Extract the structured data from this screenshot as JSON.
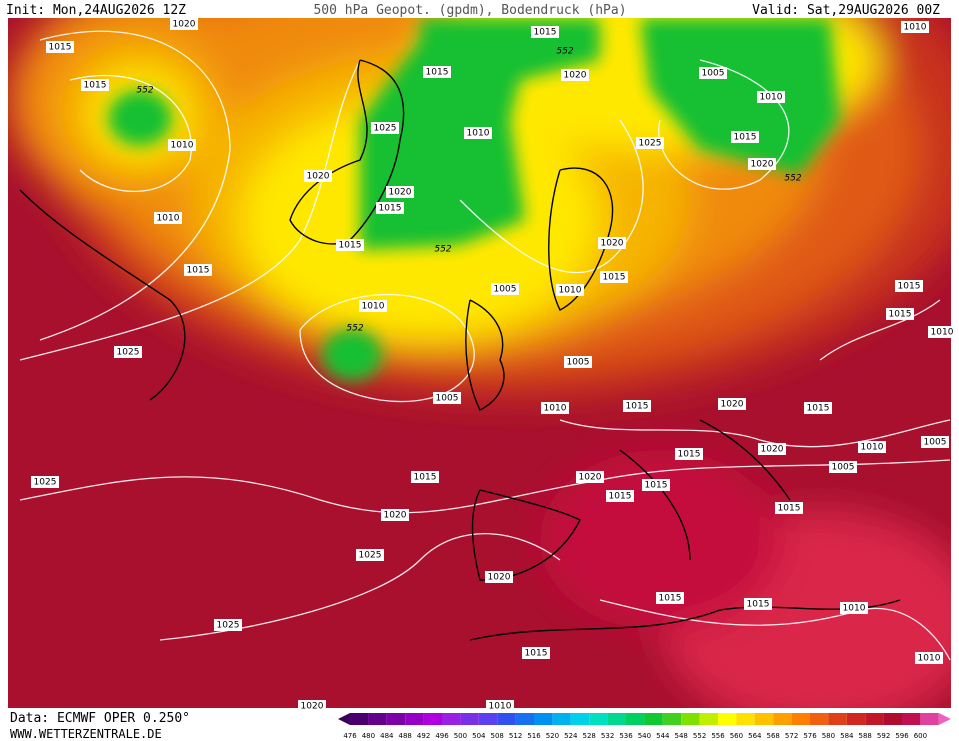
{
  "header": {
    "init": "Init: Mon,24AUG2026 12Z",
    "title": "500 hPa Geopot. (gpdm), Bodendruck (hPa)",
    "valid": "Valid: Sat,29AUG2026 00Z"
  },
  "footer": {
    "data": "Data: ECMWF OPER 0.250°",
    "site": "WWW.WETTERZENTRALE.DE"
  },
  "colorbar": {
    "labels": [
      476,
      480,
      484,
      488,
      492,
      496,
      500,
      504,
      508,
      512,
      516,
      520,
      524,
      528,
      532,
      536,
      540,
      544,
      548,
      552,
      556,
      560,
      564,
      568,
      572,
      576,
      580,
      584,
      588,
      592,
      596,
      600
    ]
  },
  "map": {
    "contour_labels": [
      "1020",
      "1015",
      "1015",
      "552",
      "1010",
      "1010",
      "1015",
      "1025",
      "1025",
      "1015",
      "552",
      "1015",
      "1020",
      "1005",
      "1010",
      "1025",
      "1010",
      "1015",
      "1025",
      "1020",
      "1020",
      "552",
      "1020",
      "1015",
      "1015",
      "552",
      "1020",
      "1015",
      "1005",
      "1010",
      "1010",
      "552",
      "1005",
      "1005",
      "1010",
      "1015",
      "1020",
      "1015",
      "1015",
      "1015",
      "1010",
      "1005",
      "1010",
      "1020",
      "1015",
      "1005",
      "1015",
      "1020",
      "1015",
      "1015",
      "1015",
      "1020",
      "1025",
      "1020",
      "1015",
      "1015",
      "1010",
      "1025",
      "1015",
      "1010",
      "1020",
      "1010",
      "1010"
    ]
  }
}
